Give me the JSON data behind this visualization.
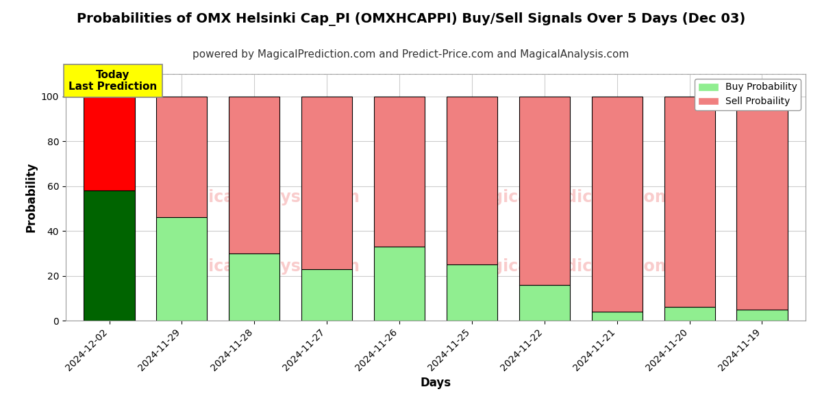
{
  "title": "Probabilities of OMX Helsinki Cap_PI (OMXHCAPPI) Buy/Sell Signals Over 5 Days (Dec 03)",
  "subtitle": "powered by MagicalPrediction.com and Predict-Price.com and MagicalAnalysis.com",
  "xlabel": "Days",
  "ylabel": "Probability",
  "categories": [
    "2024-12-02",
    "2024-11-29",
    "2024-11-28",
    "2024-11-27",
    "2024-11-26",
    "2024-11-25",
    "2024-11-22",
    "2024-11-21",
    "2024-11-20",
    "2024-11-19"
  ],
  "buy_values": [
    58,
    46,
    30,
    23,
    33,
    25,
    16,
    4,
    6,
    5
  ],
  "sell_values": [
    42,
    54,
    70,
    77,
    67,
    75,
    84,
    96,
    94,
    95
  ],
  "today_buy_color": "#006400",
  "today_sell_color": "#ff0000",
  "buy_color": "#90ee90",
  "sell_color": "#f08080",
  "bar_edge_color": "#000000",
  "today_annotation_bg": "#ffff00",
  "today_annotation_text": "Today\nLast Prediction",
  "legend_buy_label": "Buy Probability",
  "legend_sell_label": "Sell Probaility",
  "ylim_max": 110,
  "yticks": [
    0,
    20,
    40,
    60,
    80,
    100
  ],
  "dashed_line_y": 110,
  "dashed_line_color": "#aaaaaa",
  "grid_color": "#cccccc",
  "title_fontsize": 14,
  "subtitle_fontsize": 11,
  "axis_label_fontsize": 12,
  "tick_fontsize": 10,
  "bar_width": 0.7
}
